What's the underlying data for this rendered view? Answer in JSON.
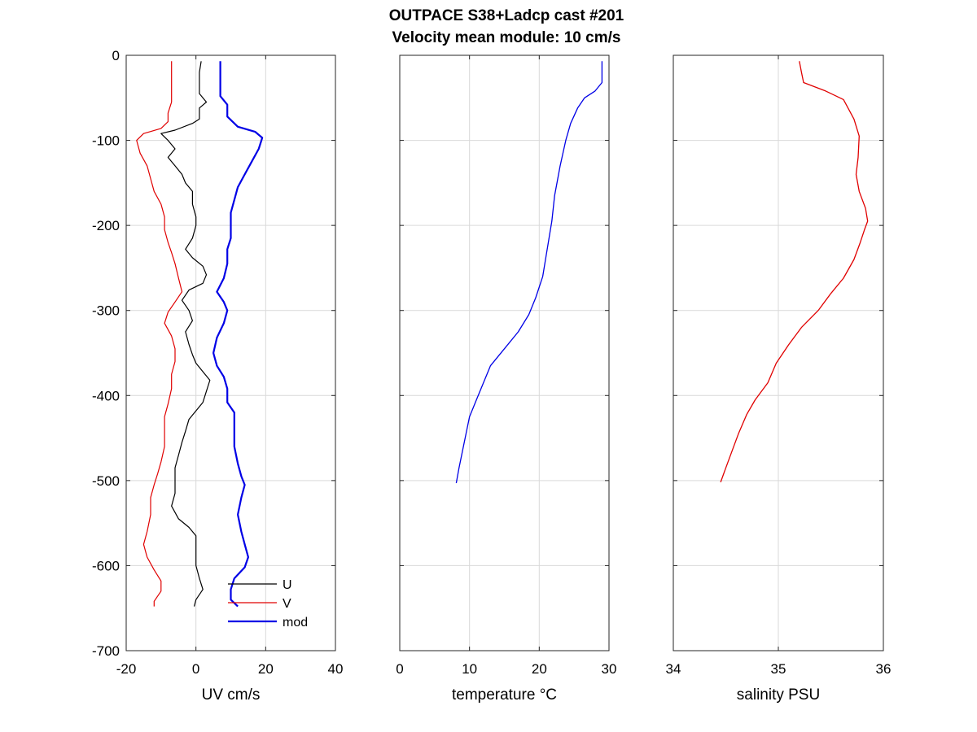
{
  "title": {
    "line1": "OUTPACE S38+Ladcp cast #201",
    "line2": "Velocity mean module:  10 cm/s"
  },
  "colors": {
    "U": "#000000",
    "V": "#e00000",
    "mod": "#0000e6",
    "temperature": "#0000e6",
    "salinity": "#e00000",
    "grid": "#d9d9d9"
  },
  "chart_data": [
    {
      "type": "line",
      "xlabel": "UV cm/s",
      "ylabel": "",
      "xlim": [
        -20,
        40
      ],
      "ylim": [
        -700,
        0
      ],
      "xticks": [
        "-20",
        "0",
        "20",
        "40"
      ],
      "yticks": [
        "0",
        "-100",
        "-200",
        "-300",
        "-400",
        "-500",
        "-600",
        "-700"
      ],
      "grid": true,
      "legend": {
        "placement": "bottom-right",
        "entries": [
          "U",
          "V",
          "mod"
        ]
      },
      "series": [
        {
          "name": "U",
          "points": [
            [
              1.5,
              -7
            ],
            [
              1,
              -20
            ],
            [
              1,
              -45
            ],
            [
              3,
              -55
            ],
            [
              1,
              -62
            ],
            [
              1,
              -75
            ],
            [
              -1,
              -80
            ],
            [
              -6,
              -88
            ],
            [
              -10,
              -92
            ],
            [
              -8,
              -100
            ],
            [
              -6,
              -110
            ],
            [
              -8,
              -120
            ],
            [
              -6,
              -130
            ],
            [
              -4,
              -140
            ],
            [
              -3,
              -150
            ],
            [
              -1,
              -160
            ],
            [
              -1,
              -175
            ],
            [
              0,
              -190
            ],
            [
              0,
              -200
            ],
            [
              -1,
              -215
            ],
            [
              -3,
              -228
            ],
            [
              -1,
              -238
            ],
            [
              2,
              -248
            ],
            [
              3,
              -258
            ],
            [
              2,
              -268
            ],
            [
              -2,
              -276
            ],
            [
              -4,
              -288
            ],
            [
              -2,
              -300
            ],
            [
              -1,
              -312
            ],
            [
              -3,
              -325
            ],
            [
              -2,
              -340
            ],
            [
              -1,
              -352
            ],
            [
              0,
              -362
            ],
            [
              2,
              -372
            ],
            [
              4,
              -382
            ],
            [
              3,
              -395
            ],
            [
              2,
              -408
            ],
            [
              0,
              -418
            ],
            [
              -2,
              -428
            ],
            [
              -3,
              -442
            ],
            [
              -4,
              -455
            ],
            [
              -5,
              -470
            ],
            [
              -6,
              -485
            ],
            [
              -6,
              -500
            ],
            [
              -6,
              -515
            ],
            [
              -7,
              -530
            ],
            [
              -5,
              -545
            ],
            [
              -2,
              -555
            ],
            [
              0,
              -565
            ],
            [
              0,
              -580
            ],
            [
              0,
              -600
            ],
            [
              1,
              -615
            ],
            [
              2,
              -628
            ],
            [
              0,
              -640
            ],
            [
              -0.5,
              -648
            ]
          ]
        },
        {
          "name": "V",
          "points": [
            [
              -7,
              -7
            ],
            [
              -7,
              -25
            ],
            [
              -7,
              -55
            ],
            [
              -8,
              -68
            ],
            [
              -8,
              -78
            ],
            [
              -10,
              -86
            ],
            [
              -15,
              -92
            ],
            [
              -17,
              -100
            ],
            [
              -16,
              -115
            ],
            [
              -14,
              -130
            ],
            [
              -13,
              -145
            ],
            [
              -12,
              -160
            ],
            [
              -10,
              -175
            ],
            [
              -9,
              -190
            ],
            [
              -9,
              -205
            ],
            [
              -8,
              -220
            ],
            [
              -7,
              -232
            ],
            [
              -6,
              -245
            ],
            [
              -5,
              -262
            ],
            [
              -4,
              -278
            ],
            [
              -6,
              -290
            ],
            [
              -8,
              -302
            ],
            [
              -9,
              -315
            ],
            [
              -7,
              -330
            ],
            [
              -6,
              -345
            ],
            [
              -6,
              -360
            ],
            [
              -7,
              -375
            ],
            [
              -7,
              -392
            ],
            [
              -8,
              -410
            ],
            [
              -9,
              -425
            ],
            [
              -9,
              -442
            ],
            [
              -9,
              -460
            ],
            [
              -10,
              -478
            ],
            [
              -11,
              -492
            ],
            [
              -12,
              -505
            ],
            [
              -13,
              -520
            ],
            [
              -13,
              -540
            ],
            [
              -14,
              -560
            ],
            [
              -15,
              -575
            ],
            [
              -14,
              -590
            ],
            [
              -12,
              -605
            ],
            [
              -10,
              -618
            ],
            [
              -10,
              -630
            ],
            [
              -12,
              -642
            ],
            [
              -12,
              -648
            ]
          ]
        },
        {
          "name": "mod",
          "points": [
            [
              7,
              -7
            ],
            [
              7,
              -25
            ],
            [
              7,
              -48
            ],
            [
              9,
              -58
            ],
            [
              9,
              -72
            ],
            [
              12,
              -84
            ],
            [
              17,
              -90
            ],
            [
              19,
              -97
            ],
            [
              18,
              -110
            ],
            [
              16,
              -125
            ],
            [
              14,
              -140
            ],
            [
              12,
              -155
            ],
            [
              11,
              -170
            ],
            [
              10,
              -185
            ],
            [
              10,
              -200
            ],
            [
              10,
              -215
            ],
            [
              9,
              -228
            ],
            [
              9,
              -245
            ],
            [
              8,
              -262
            ],
            [
              6,
              -278
            ],
            [
              8,
              -290
            ],
            [
              9,
              -300
            ],
            [
              8,
              -315
            ],
            [
              6,
              -332
            ],
            [
              5,
              -350
            ],
            [
              6,
              -365
            ],
            [
              8,
              -378
            ],
            [
              9,
              -392
            ],
            [
              9,
              -408
            ],
            [
              11,
              -420
            ],
            [
              11,
              -440
            ],
            [
              11,
              -460
            ],
            [
              12,
              -480
            ],
            [
              13,
              -495
            ],
            [
              14,
              -505
            ],
            [
              13,
              -520
            ],
            [
              12,
              -540
            ],
            [
              13,
              -560
            ],
            [
              14,
              -575
            ],
            [
              15,
              -590
            ],
            [
              14,
              -602
            ],
            [
              11,
              -615
            ],
            [
              10,
              -628
            ],
            [
              10,
              -640
            ],
            [
              12,
              -648
            ]
          ]
        }
      ]
    },
    {
      "type": "line",
      "xlabel": "temperature °C",
      "ylabel": "",
      "xlim": [
        0,
        30
      ],
      "ylim": [
        -700,
        0
      ],
      "xticks": [
        "0",
        "10",
        "20",
        "30"
      ],
      "grid": true,
      "series": [
        {
          "points": [
            [
              29,
              -7
            ],
            [
              29,
              -32
            ],
            [
              28,
              -42
            ],
            [
              26.5,
              -50
            ],
            [
              25.5,
              -62
            ],
            [
              24.5,
              -80
            ],
            [
              23.8,
              -100
            ],
            [
              23,
              -130
            ],
            [
              22.2,
              -165
            ],
            [
              21.8,
              -195
            ],
            [
              21.5,
              -210
            ],
            [
              21,
              -235
            ],
            [
              20.5,
              -260
            ],
            [
              19.5,
              -285
            ],
            [
              18.5,
              -305
            ],
            [
              17,
              -325
            ],
            [
              15,
              -345
            ],
            [
              13,
              -365
            ],
            [
              12,
              -385
            ],
            [
              11,
              -405
            ],
            [
              10,
              -425
            ],
            [
              9.5,
              -445
            ],
            [
              9,
              -465
            ],
            [
              8.5,
              -485
            ],
            [
              8.1,
              -503
            ]
          ]
        }
      ]
    },
    {
      "type": "line",
      "xlabel": "salinity PSU",
      "ylabel": "",
      "xlim": [
        34,
        36
      ],
      "ylim": [
        -700,
        0
      ],
      "xticks": [
        "34",
        "35",
        "36"
      ],
      "grid": true,
      "series": [
        {
          "points": [
            [
              35.2,
              -7
            ],
            [
              35.22,
              -20
            ],
            [
              35.24,
              -32
            ],
            [
              35.45,
              -42
            ],
            [
              35.62,
              -52
            ],
            [
              35.72,
              -75
            ],
            [
              35.77,
              -95
            ],
            [
              35.76,
              -120
            ],
            [
              35.74,
              -140
            ],
            [
              35.77,
              -160
            ],
            [
              35.83,
              -180
            ],
            [
              35.85,
              -195
            ],
            [
              35.82,
              -205
            ],
            [
              35.78,
              -220
            ],
            [
              35.72,
              -240
            ],
            [
              35.62,
              -262
            ],
            [
              35.5,
              -280
            ],
            [
              35.38,
              -300
            ],
            [
              35.22,
              -320
            ],
            [
              35.1,
              -340
            ],
            [
              34.98,
              -362
            ],
            [
              34.9,
              -385
            ],
            [
              34.78,
              -405
            ],
            [
              34.7,
              -422
            ],
            [
              34.62,
              -445
            ],
            [
              34.56,
              -465
            ],
            [
              34.5,
              -485
            ],
            [
              34.45,
              -502
            ]
          ]
        }
      ]
    }
  ]
}
